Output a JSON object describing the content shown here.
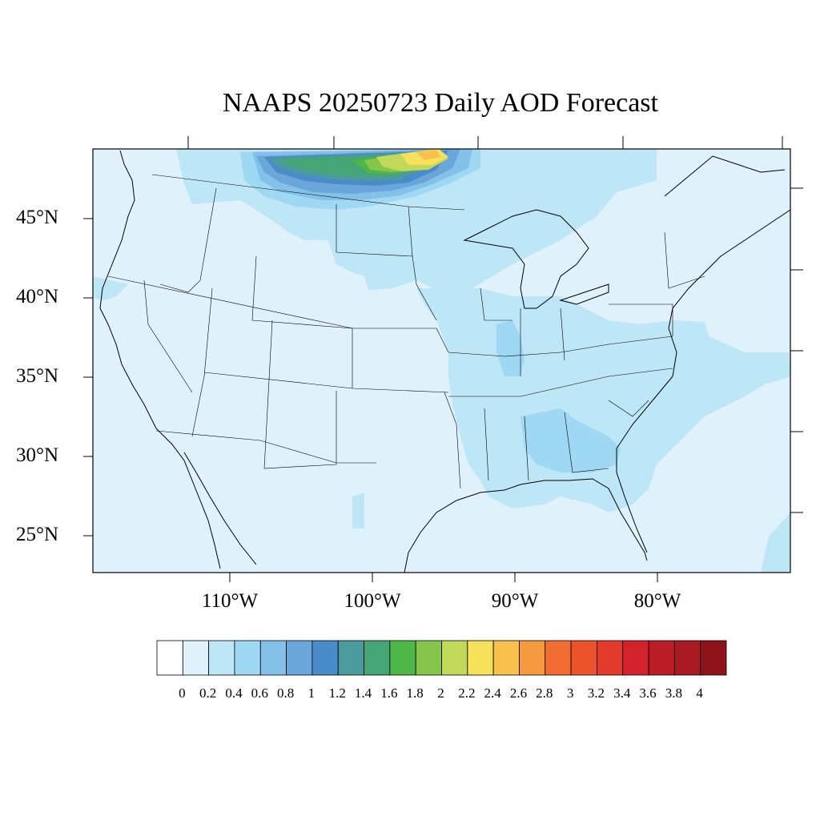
{
  "title": "NAAPS 20250723 Daily AOD Forecast",
  "lat_labels": [
    "45°N",
    "40°N",
    "35°N",
    "30°N",
    "25°N"
  ],
  "lon_labels": [
    "110°W",
    "100°W",
    "90°W",
    "80°W"
  ],
  "colorbar": {
    "labels": [
      "0",
      "0.2",
      "0.4",
      "0.6",
      "0.8",
      "1",
      "1.2",
      "1.4",
      "1.6",
      "1.8",
      "2",
      "2.2",
      "2.4",
      "2.6",
      "2.8",
      "3",
      "3.2",
      "3.4",
      "3.6",
      "3.8",
      "4"
    ],
    "colors": [
      "#ffffff",
      "#dff1fb",
      "#bde6f7",
      "#9ed8f3",
      "#84c1e8",
      "#6aa6da",
      "#4a8bc9",
      "#4b9a9e",
      "#46a574",
      "#4db748",
      "#86c54c",
      "#c2d85a",
      "#f6e15a",
      "#f7c14c",
      "#f59a3e",
      "#f26d31",
      "#ec532d",
      "#e23a2b",
      "#d3222b",
      "#bb1d26",
      "#aa1a22",
      "#8f1419"
    ]
  },
  "colors": {
    "background_ocean": "#dff1fb",
    "boundary_line": "#000000"
  }
}
